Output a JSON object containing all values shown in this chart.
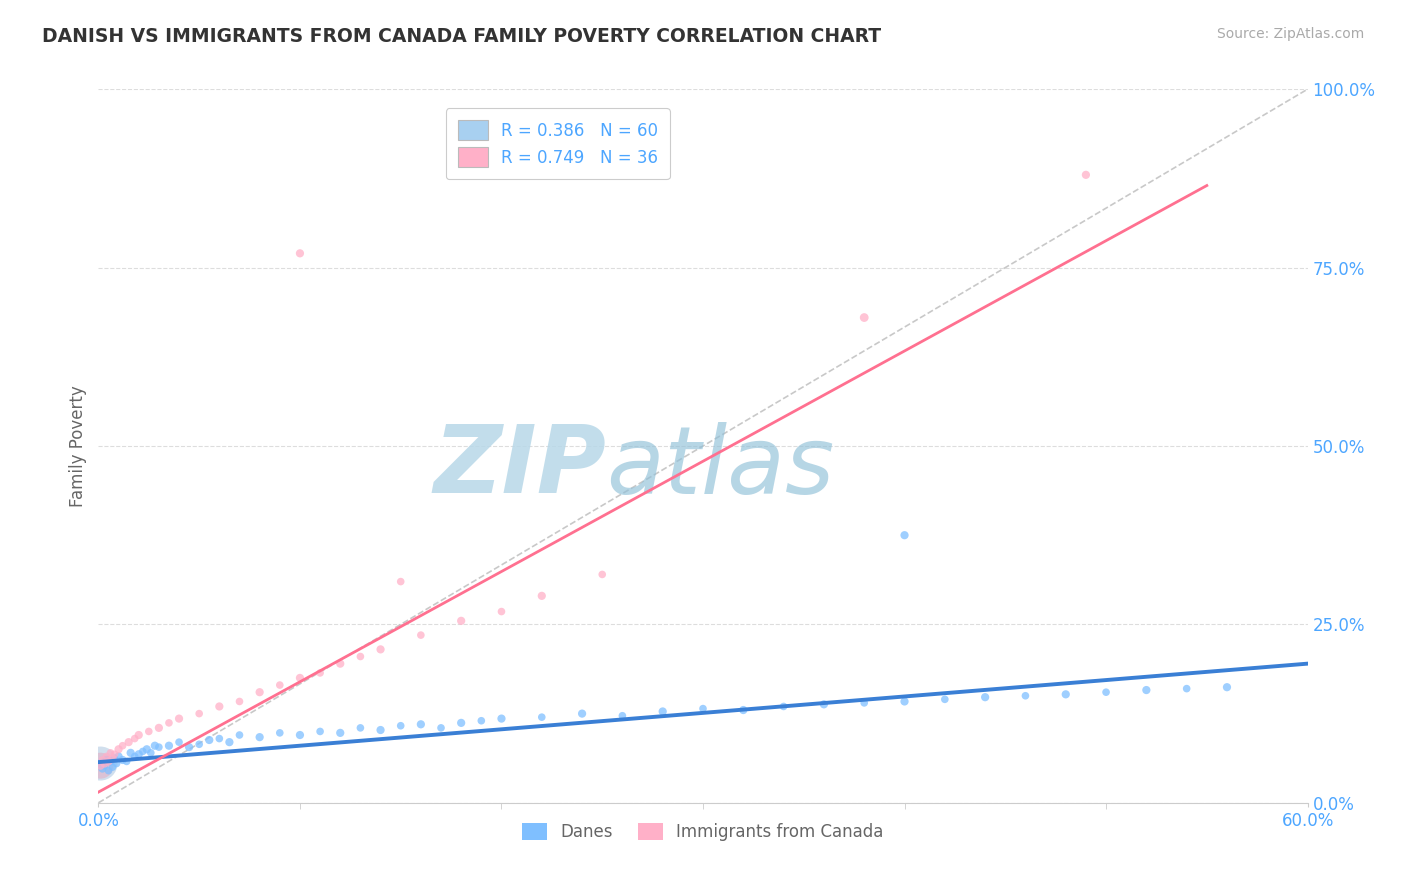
{
  "title": "DANISH VS IMMIGRANTS FROM CANADA FAMILY POVERTY CORRELATION CHART",
  "source": "Source: ZipAtlas.com",
  "ylabel": "Family Poverty",
  "x_min": 0.0,
  "x_max": 0.6,
  "y_min": 0.0,
  "y_max": 1.0,
  "x_ticks": [
    0.0,
    0.6
  ],
  "x_tick_labels": [
    "0.0%",
    "60.0%"
  ],
  "y_ticks": [
    0.0,
    0.25,
    0.5,
    0.75,
    1.0
  ],
  "y_tick_labels": [
    "0.0%",
    "25.0%",
    "50.0%",
    "75.0%",
    "100.0%"
  ],
  "legend_r1": "R = 0.386   N = 60",
  "legend_r2": "R = 0.749   N = 36",
  "color_danes": "#7fbfff",
  "color_immigrants": "#ffb0c8",
  "color_danes_line": "#3a7fd5",
  "color_immigrants_line": "#ff7090",
  "watermark": "ZIPatlas",
  "watermark_color": "#cce5f0",
  "background_color": "#ffffff",
  "grid_color": "#dddddd",
  "title_color": "#333333",
  "axis_label_color": "#666666",
  "tick_label_color": "#4da6ff",
  "legend_box_color_danes": "#a8d0f0",
  "legend_box_color_immigrants": "#ffb0c8",
  "legend_text_color": "#4da6ff",
  "danes_x": [
    0.001,
    0.002,
    0.003,
    0.004,
    0.005,
    0.006,
    0.007,
    0.008,
    0.009,
    0.01,
    0.012,
    0.014,
    0.016,
    0.018,
    0.02,
    0.022,
    0.024,
    0.026,
    0.028,
    0.03,
    0.035,
    0.04,
    0.045,
    0.05,
    0.055,
    0.06,
    0.065,
    0.07,
    0.08,
    0.09,
    0.1,
    0.11,
    0.12,
    0.13,
    0.14,
    0.15,
    0.16,
    0.17,
    0.18,
    0.19,
    0.2,
    0.22,
    0.24,
    0.26,
    0.28,
    0.3,
    0.32,
    0.34,
    0.36,
    0.38,
    0.4,
    0.42,
    0.44,
    0.46,
    0.48,
    0.5,
    0.52,
    0.54,
    0.56,
    0.4
  ],
  "danes_y": [
    0.055,
    0.048,
    0.052,
    0.06,
    0.045,
    0.058,
    0.05,
    0.062,
    0.055,
    0.065,
    0.06,
    0.058,
    0.07,
    0.065,
    0.068,
    0.072,
    0.075,
    0.07,
    0.08,
    0.078,
    0.08,
    0.085,
    0.078,
    0.082,
    0.088,
    0.09,
    0.085,
    0.095,
    0.092,
    0.098,
    0.095,
    0.1,
    0.098,
    0.105,
    0.102,
    0.108,
    0.11,
    0.105,
    0.112,
    0.115,
    0.118,
    0.12,
    0.125,
    0.122,
    0.128,
    0.132,
    0.13,
    0.135,
    0.138,
    0.14,
    0.142,
    0.145,
    0.148,
    0.15,
    0.152,
    0.155,
    0.158,
    0.16,
    0.162,
    0.375
  ],
  "danes_sizes": [
    40,
    35,
    30,
    35,
    30,
    35,
    30,
    35,
    30,
    35,
    35,
    30,
    35,
    30,
    35,
    30,
    35,
    30,
    35,
    30,
    35,
    30,
    35,
    30,
    35,
    30,
    35,
    30,
    35,
    30,
    35,
    30,
    35,
    30,
    35,
    30,
    35,
    30,
    35,
    30,
    35,
    30,
    35,
    30,
    35,
    30,
    35,
    30,
    35,
    30,
    35,
    30,
    35,
    30,
    35,
    30,
    35,
    30,
    35,
    35
  ],
  "danes_large_x": [
    0.001
  ],
  "danes_large_y": [
    0.055
  ],
  "danes_large_size": [
    600
  ],
  "imm_x": [
    0.001,
    0.002,
    0.003,
    0.004,
    0.005,
    0.006,
    0.007,
    0.008,
    0.01,
    0.012,
    0.015,
    0.018,
    0.02,
    0.025,
    0.03,
    0.035,
    0.04,
    0.05,
    0.06,
    0.07,
    0.08,
    0.09,
    0.1,
    0.11,
    0.12,
    0.13,
    0.14,
    0.16,
    0.18,
    0.2,
    0.22,
    0.25,
    0.1,
    0.38,
    0.49,
    0.15
  ],
  "imm_y": [
    0.052,
    0.06,
    0.055,
    0.065,
    0.058,
    0.07,
    0.062,
    0.068,
    0.075,
    0.08,
    0.085,
    0.09,
    0.095,
    0.1,
    0.105,
    0.112,
    0.118,
    0.125,
    0.135,
    0.142,
    0.155,
    0.165,
    0.175,
    0.182,
    0.195,
    0.205,
    0.215,
    0.235,
    0.255,
    0.268,
    0.29,
    0.32,
    0.77,
    0.68,
    0.88,
    0.31
  ],
  "imm_sizes": [
    35,
    30,
    35,
    30,
    35,
    30,
    35,
    30,
    35,
    30,
    35,
    30,
    35,
    30,
    35,
    30,
    35,
    30,
    35,
    30,
    35,
    30,
    35,
    30,
    35,
    30,
    35,
    30,
    35,
    30,
    35,
    30,
    35,
    40,
    35,
    30
  ],
  "imm_large_x": [
    0.001
  ],
  "imm_large_y": [
    0.052
  ],
  "imm_large_size": [
    350
  ],
  "danes_trend_x": [
    0.0,
    0.6
  ],
  "danes_trend_y": [
    0.057,
    0.195
  ],
  "imm_trend_x": [
    0.0,
    0.55
  ],
  "imm_trend_y": [
    0.015,
    0.865
  ]
}
